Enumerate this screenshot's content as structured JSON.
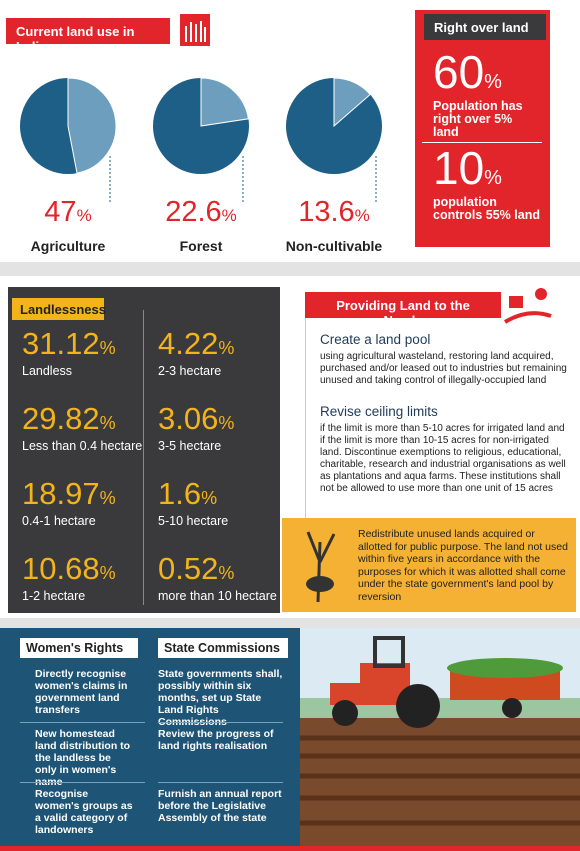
{
  "land_use": {
    "title": "Current land use in India",
    "items": [
      {
        "value": 47,
        "unit": "%",
        "label": "Agriculture"
      },
      {
        "value": 22.6,
        "unit": "%",
        "label": "Forest"
      },
      {
        "value": 13.6,
        "unit": "%",
        "label": "Non-cultivable"
      }
    ]
  },
  "right_over_land": {
    "title": "Right over land",
    "items": [
      {
        "value": 60,
        "unit": "%",
        "text": "Population has right over 5% land"
      },
      {
        "value": 10,
        "unit": "%",
        "text": "population controls 55% land"
      }
    ]
  },
  "landlessness": {
    "title": "Landlessness",
    "items": [
      {
        "value": 31.12,
        "unit": "%",
        "label": "Landless"
      },
      {
        "value": 29.82,
        "unit": "%",
        "label": "Less than 0.4 hectare"
      },
      {
        "value": 18.97,
        "unit": "%",
        "label": "0.4-1 hectare"
      },
      {
        "value": 10.68,
        "unit": "%",
        "label": "1-2 hectare"
      },
      {
        "value": 4.22,
        "unit": "%",
        "label": "2-3 hectare"
      },
      {
        "value": 3.06,
        "unit": "%",
        "label": "3-5 hectare"
      },
      {
        "value": 1.6,
        "unit": "%",
        "label": "5-10 hectare"
      },
      {
        "value": 0.52,
        "unit": "%",
        "label": "more than 10 hectare"
      }
    ]
  },
  "providing_land": {
    "title": "Providing Land to the Needy",
    "sections": [
      {
        "heading": "Create a land pool",
        "text": "using agricultural wasteland, restoring land acquired, purchased and/or leased out to industries but remaining unused and taking control of illegally-occupied land"
      },
      {
        "heading": "Revise ceiling limits",
        "text": "if the limit is more than 5-10 acres for irrigated land and if the limit is more than 10-15 acres for non-irrigated land. Discontinue exemptions to religious, educational, charitable, research and industrial organisations as well as plantations and aqua farms. These institutions shall not be allowed to use more than one unit of 15 acres"
      }
    ],
    "note": "Redistribute unused lands acquired or allotted for public purpose. The land not used within five years in accordance with the purposes for which it was allotted shall come under the state government's land pool by reversion"
  },
  "rights": {
    "columns": [
      {
        "title": "Women's Rights",
        "rows": [
          "Directly recognise women's claims in government land transfers",
          "New homestead land distribution to the landless be only in women's name",
          "Recognise women's groups as a valid category of landowners"
        ]
      },
      {
        "title": "State Commissions",
        "rows": [
          "State governments shall, possibly within six months, set up State Land Rights Commissions",
          "Review the progress of land rights realisation",
          "Furnish an annual report before the Legislative Assembly of the state"
        ]
      }
    ]
  }
}
